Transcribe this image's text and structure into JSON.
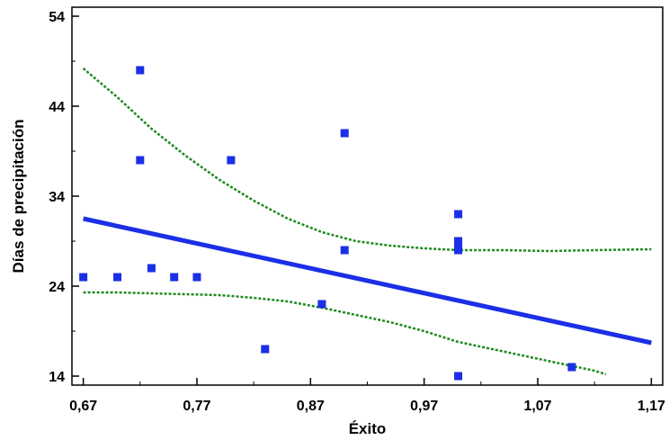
{
  "chart_data": {
    "type": "scatter",
    "xlabel": "Éxito",
    "ylabel": "Días de precipitación",
    "xlim": [
      0.66,
      1.18
    ],
    "ylim": [
      13,
      55
    ],
    "x_ticks": [
      0.67,
      0.77,
      0.87,
      0.97,
      1.07,
      1.17
    ],
    "x_tick_labels": [
      "0,67",
      "0,77",
      "0,87",
      "0,97",
      "1,07",
      "1,17"
    ],
    "y_ticks": [
      14,
      24,
      34,
      44,
      54
    ],
    "y_tick_labels": [
      "14",
      "24",
      "34",
      "44",
      "54"
    ],
    "grid": false,
    "colors": {
      "points": "#1a2fe6",
      "fit": "#1a2fe6",
      "bands": "#1e8a1e"
    },
    "points": [
      {
        "x": 0.67,
        "y": 25
      },
      {
        "x": 0.7,
        "y": 25
      },
      {
        "x": 0.72,
        "y": 48
      },
      {
        "x": 0.72,
        "y": 38
      },
      {
        "x": 0.73,
        "y": 26
      },
      {
        "x": 0.75,
        "y": 25
      },
      {
        "x": 0.77,
        "y": 25
      },
      {
        "x": 0.8,
        "y": 38
      },
      {
        "x": 0.83,
        "y": 17
      },
      {
        "x": 0.88,
        "y": 22
      },
      {
        "x": 0.9,
        "y": 41
      },
      {
        "x": 0.9,
        "y": 28
      },
      {
        "x": 1.0,
        "y": 32
      },
      {
        "x": 1.0,
        "y": 29
      },
      {
        "x": 1.0,
        "y": 28.5
      },
      {
        "x": 1.0,
        "y": 28
      },
      {
        "x": 1.0,
        "y": 14
      },
      {
        "x": 1.1,
        "y": 15
      }
    ],
    "fit_line": {
      "x": [
        0.67,
        1.17
      ],
      "y": [
        31.5,
        17.7
      ]
    },
    "upper_band": {
      "x": [
        0.67,
        0.7,
        0.73,
        0.76,
        0.79,
        0.82,
        0.85,
        0.88,
        0.91,
        0.94,
        0.97,
        1.0,
        1.04,
        1.08,
        1.12,
        1.17
      ],
      "y": [
        48.2,
        45.0,
        41.5,
        38.5,
        35.8,
        33.5,
        31.5,
        30.0,
        29.0,
        28.5,
        28.2,
        28.0,
        28.0,
        27.9,
        28.0,
        28.1
      ]
    },
    "lower_band": {
      "x": [
        0.67,
        0.7,
        0.73,
        0.76,
        0.79,
        0.82,
        0.85,
        0.88,
        0.91,
        0.94,
        0.97,
        1.0,
        1.03,
        1.06,
        1.09,
        1.12,
        1.13
      ],
      "y": [
        23.3,
        23.3,
        23.2,
        23.1,
        23.0,
        22.7,
        22.3,
        21.6,
        20.8,
        20.0,
        19.0,
        17.8,
        17.0,
        16.2,
        15.4,
        14.6,
        14.2
      ]
    }
  }
}
